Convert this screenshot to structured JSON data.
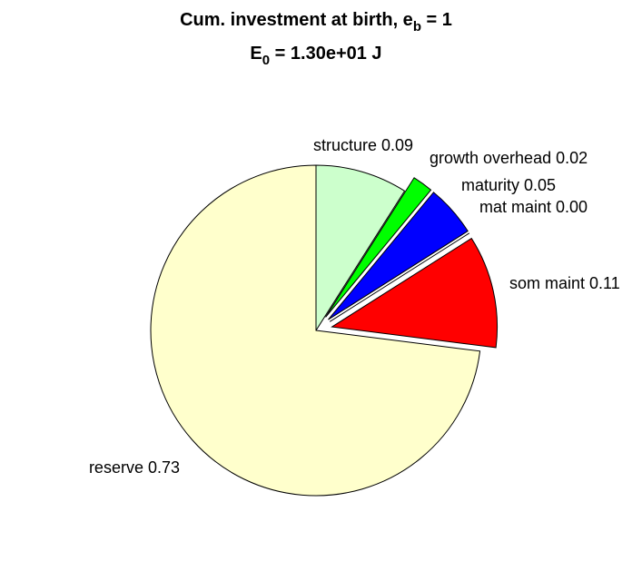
{
  "chart_data": {
    "type": "pie",
    "title": {
      "line1_main": "Cum. investment at birth, e",
      "line1_sub": "b",
      "line1_tail": " = 1",
      "line2_main": "E",
      "line2_sub": "0",
      "line2_tail": " = 1.30e+01 J"
    },
    "slices": [
      {
        "label": "structure 0.09",
        "value": 0.09,
        "color": "#ccffcc",
        "explode": false
      },
      {
        "label": "growth overhead 0.02",
        "value": 0.02,
        "color": "#00ff00",
        "explode": true
      },
      {
        "label": "maturity 0.05",
        "value": 0.05,
        "color": "#0000ff",
        "explode": true
      },
      {
        "label": "mat maint 0.00",
        "value": 0.0,
        "color": "#000000",
        "explode": true
      },
      {
        "label": "som maint 0.11",
        "value": 0.11,
        "color": "#ff0000",
        "explode": true
      },
      {
        "label": "reserve 0.73",
        "value": 0.73,
        "color": "#ffffcc",
        "explode": false
      }
    ]
  }
}
